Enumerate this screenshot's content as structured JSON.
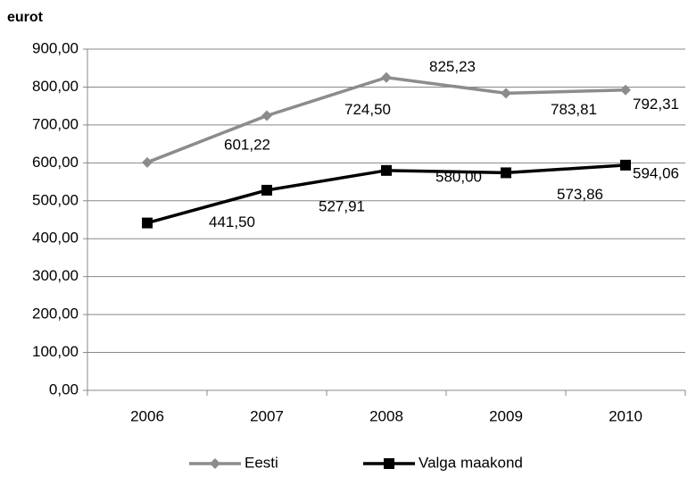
{
  "chart_data": {
    "type": "line",
    "title": "eurot",
    "categories": [
      "2006",
      "2007",
      "2008",
      "2009",
      "2010"
    ],
    "series": [
      {
        "name": "Eesti",
        "color": "#8c8c8c",
        "marker": "diamond",
        "values": [
          601.22,
          724.5,
          825.23,
          783.81,
          792.31
        ],
        "value_labels": [
          "601,22",
          "724,50",
          "825,23",
          "783,81",
          "792,31"
        ]
      },
      {
        "name": "Valga maakond",
        "color": "#000000",
        "marker": "square",
        "values": [
          441.5,
          527.91,
          580.0,
          573.86,
          594.06
        ],
        "value_labels": [
          "441,50",
          "527,91",
          "580,00",
          "573,86",
          "594,06"
        ]
      }
    ],
    "ylim": [
      0,
      900
    ],
    "yticks": [
      {
        "value": 0,
        "label": "0,00"
      },
      {
        "value": 100,
        "label": "100,00"
      },
      {
        "value": 200,
        "label": "200,00"
      },
      {
        "value": 300,
        "label": "300,00"
      },
      {
        "value": 400,
        "label": "400,00"
      },
      {
        "value": 500,
        "label": "500,00"
      },
      {
        "value": 600,
        "label": "600,00"
      },
      {
        "value": 700,
        "label": "700,00"
      },
      {
        "value": 800,
        "label": "800,00"
      },
      {
        "value": 900,
        "label": "900,00"
      }
    ],
    "grid": true,
    "legend": "bottom"
  }
}
